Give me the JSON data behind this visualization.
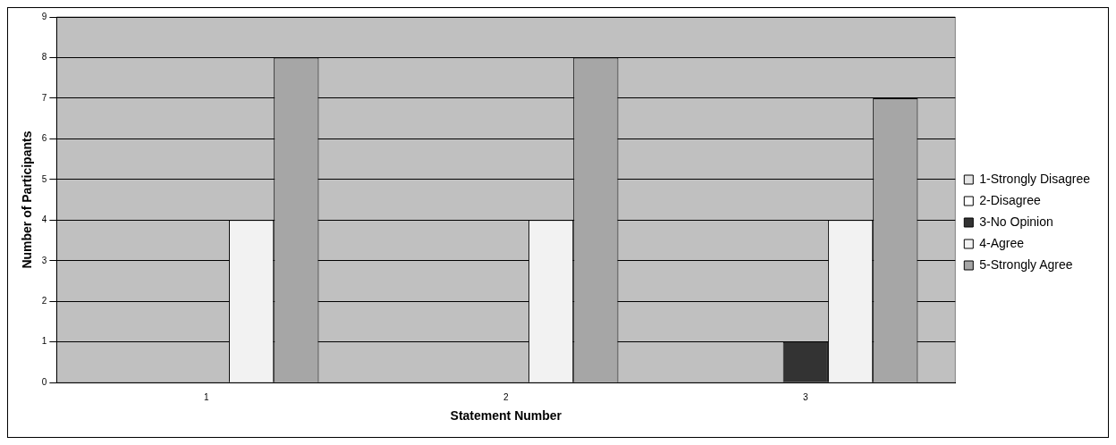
{
  "chart_data": {
    "type": "bar",
    "xlabel": "Statement Number",
    "ylabel": "Number of Participants",
    "categories": [
      "1",
      "2",
      "3"
    ],
    "series": [
      {
        "name": "1-Strongly Disagree",
        "color": "#e6e6e6",
        "values": [
          0,
          0,
          0
        ]
      },
      {
        "name": "2-Disagree",
        "color": "#ffffff",
        "values": [
          0,
          0,
          0
        ]
      },
      {
        "name": "3-No Opinion",
        "color": "#333333",
        "values": [
          0,
          0,
          1
        ]
      },
      {
        "name": "4-Agree",
        "color": "#f2f2f2",
        "values": [
          4,
          4,
          4
        ]
      },
      {
        "name": "5-Strongly Agree",
        "color": "#a6a6a6",
        "values": [
          8,
          8,
          7
        ]
      }
    ],
    "ylim": [
      0,
      9
    ],
    "yticks": [
      0,
      1,
      2,
      3,
      4,
      5,
      6,
      7,
      8,
      9
    ],
    "grid": "y",
    "legend": "right"
  }
}
